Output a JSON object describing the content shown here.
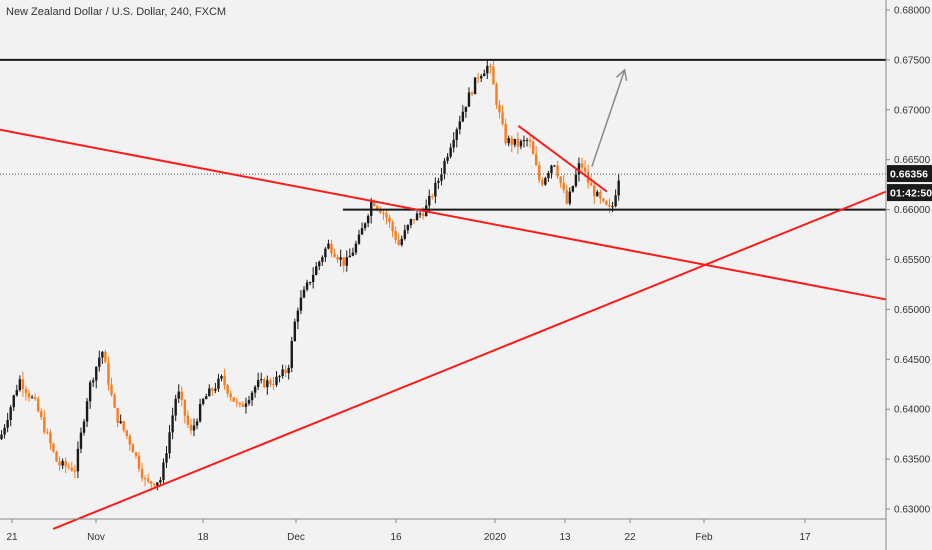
{
  "chart_data": {
    "type": "candlestick",
    "title": "New Zealand Dollar / U.S. Dollar, 240, FXCM",
    "ylim": [
      0.629,
      0.681
    ],
    "y_ticks": [
      {
        "value": 0.68,
        "label": "0.68000"
      },
      {
        "value": 0.675,
        "label": "0.67500"
      },
      {
        "value": 0.67,
        "label": "0.67000"
      },
      {
        "value": 0.665,
        "label": "0.66500"
      },
      {
        "value": 0.66,
        "label": "0.66000"
      },
      {
        "value": 0.655,
        "label": "0.65500"
      },
      {
        "value": 0.65,
        "label": "0.65000"
      },
      {
        "value": 0.645,
        "label": "0.64500"
      },
      {
        "value": 0.64,
        "label": "0.64000"
      },
      {
        "value": 0.635,
        "label": "0.63500"
      },
      {
        "value": 0.63,
        "label": "0.63000"
      }
    ],
    "x_ticks": [
      "21",
      "Nov",
      "18",
      "Dec",
      "16",
      "2020",
      "13",
      "22",
      "Feb",
      "17"
    ],
    "current_price": {
      "value": 0.66356,
      "label": "0.66356"
    },
    "countdown_label": "01:42:50",
    "price_path": [
      {
        "t": 0.0,
        "p": 0.637
      },
      {
        "t": 0.022,
        "p": 0.643
      },
      {
        "t": 0.04,
        "p": 0.6405
      },
      {
        "t": 0.065,
        "p": 0.6345
      },
      {
        "t": 0.085,
        "p": 0.634
      },
      {
        "t": 0.1,
        "p": 0.642
      },
      {
        "t": 0.115,
        "p": 0.646
      },
      {
        "t": 0.13,
        "p": 0.6395
      },
      {
        "t": 0.148,
        "p": 0.6365
      },
      {
        "t": 0.165,
        "p": 0.6325
      },
      {
        "t": 0.182,
        "p": 0.633
      },
      {
        "t": 0.2,
        "p": 0.642
      },
      {
        "t": 0.215,
        "p": 0.6375
      },
      {
        "t": 0.23,
        "p": 0.641
      },
      {
        "t": 0.25,
        "p": 0.643
      },
      {
        "t": 0.27,
        "p": 0.64
      },
      {
        "t": 0.29,
        "p": 0.6425
      },
      {
        "t": 0.31,
        "p": 0.6428
      },
      {
        "t": 0.325,
        "p": 0.644
      },
      {
        "t": 0.335,
        "p": 0.65
      },
      {
        "t": 0.35,
        "p": 0.653
      },
      {
        "t": 0.37,
        "p": 0.6565
      },
      {
        "t": 0.39,
        "p": 0.6545
      },
      {
        "t": 0.405,
        "p": 0.657
      },
      {
        "t": 0.42,
        "p": 0.661
      },
      {
        "t": 0.435,
        "p": 0.6595
      },
      {
        "t": 0.45,
        "p": 0.6565
      },
      {
        "t": 0.465,
        "p": 0.659
      },
      {
        "t": 0.48,
        "p": 0.66
      },
      {
        "t": 0.495,
        "p": 0.663
      },
      {
        "t": 0.51,
        "p": 0.667
      },
      {
        "t": 0.525,
        "p": 0.6705
      },
      {
        "t": 0.54,
        "p": 0.6735
      },
      {
        "t": 0.552,
        "p": 0.6745
      },
      {
        "t": 0.56,
        "p": 0.671
      },
      {
        "t": 0.57,
        "p": 0.667
      },
      {
        "t": 0.585,
        "p": 0.6665
      },
      {
        "t": 0.597,
        "p": 0.667
      },
      {
        "t": 0.61,
        "p": 0.6625
      },
      {
        "t": 0.625,
        "p": 0.665
      },
      {
        "t": 0.64,
        "p": 0.6605
      },
      {
        "t": 0.655,
        "p": 0.6648
      },
      {
        "t": 0.665,
        "p": 0.6625
      },
      {
        "t": 0.68,
        "p": 0.6605
      },
      {
        "t": 0.69,
        "p": 0.6598
      },
      {
        "t": 0.7,
        "p": 0.664
      }
    ],
    "series": [],
    "annotations": [
      {
        "kind": "hline",
        "color": "#1a1a1a",
        "y": 0.675,
        "x": [
          0.0,
          1.0
        ]
      },
      {
        "kind": "hline",
        "color": "#1a1a1a",
        "y": 0.66,
        "x": [
          0.387,
          1.0
        ]
      },
      {
        "kind": "dotted-hline",
        "color": "#555555",
        "y": 0.66356,
        "x": [
          0.0,
          1.0
        ]
      },
      {
        "kind": "trendline",
        "color": "#ff1a1a",
        "from": [
          0.0,
          0.668
        ],
        "to": [
          1.0,
          0.651
        ]
      },
      {
        "kind": "trendline",
        "color": "#ff1a1a",
        "from": [
          0.06,
          0.628
        ],
        "to": [
          1.0,
          0.6618
        ]
      },
      {
        "kind": "trendline",
        "color": "#ff1a1a",
        "from": [
          0.585,
          0.6684
        ],
        "to": [
          0.685,
          0.6618
        ]
      },
      {
        "kind": "arrow",
        "color": "#888888",
        "from": [
          0.668,
          0.6643
        ],
        "to": [
          0.705,
          0.674
        ]
      }
    ],
    "colors": {
      "up": "#1a1a1a",
      "down": "#ff7a1a",
      "background": "#f2f2f2",
      "label_bg": "#1a1a1a"
    },
    "grid": false,
    "legend": "none"
  }
}
